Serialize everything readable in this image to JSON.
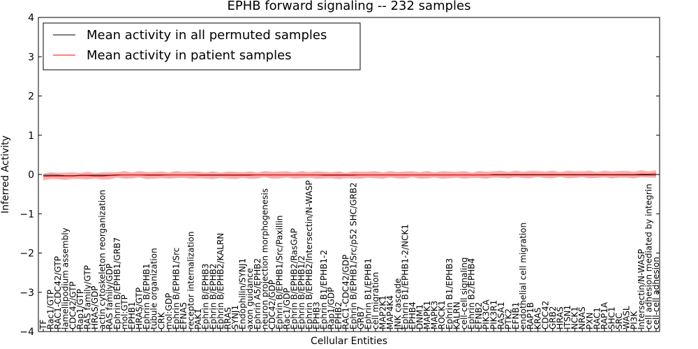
{
  "chart_data": {
    "type": "line",
    "title": "EPHB forward signaling -- 232 samples",
    "xlabel": "Cellular Entities",
    "ylabel": "Inferred Activity",
    "ylim": [
      -4,
      4
    ],
    "yticks": [
      "4",
      "3",
      "2",
      "1",
      "0",
      "−1",
      "−2",
      "−3",
      "−4"
    ],
    "yticks_values": [
      4,
      3,
      2,
      1,
      0,
      -1,
      -2,
      -3,
      -4
    ],
    "legend_position": "top-left",
    "categories": [
      "TF",
      "Rac1/GTP",
      "RAC1-CDC42/GTP",
      "lamellipodium assembly",
      "CDC42/GTP",
      "Rap1/GTP",
      "RAS family/GTP",
      "HRAS/GDP",
      "actin cytoskeleton reorganization",
      "RAS family/GDP",
      "Ephrin B/EPHB1/GRB7",
      "mol:GTP",
      "EPHB1",
      "HRAS/GTP",
      "Ephrin B/EPHB1",
      "tubule organization",
      "CRK",
      "mol:GDP",
      "Ephrin B/EPHB1/Src",
      "EFNA5",
      "receptor internalization",
      "PAK1",
      "Ephrin B/EPHB3",
      "Ephrin B/EPHB2",
      "Ephrin B/EPHB2/KALRN",
      "RRAS",
      "SYNJ1",
      "Endophilin/SYNJ1",
      "axon guidance",
      "Ephrin A5/EPHB2",
      "neuron projection morphogenesis",
      "CDC42/GDP",
      "Ephrin B/EPHB1/Src/Paxillin",
      "Rac1/GDP",
      "Ephrin B/EPHB2/RasGAP",
      "Ephrin B/EPHB1/2",
      "Ephrin B/EPHB2/Intersectin/N-WASP",
      "EPHB3",
      "Ephrin B1/EPHB1-2",
      "Rap1/GDP",
      "EPHB2",
      "RAC1-CDC42/GDP",
      "Ephrin B/EPHB1/Src/p52 SHC/GRB2",
      "GRB7",
      "Ephrin B1/EPHB1",
      "cell migration",
      "MAP2K1",
      "MAP4K4",
      "JNK cascade",
      "Ephrin B1/EPHB1-2/NCK1",
      "EPHB4",
      "DNM1",
      "MAPK1",
      "MAPK3",
      "ROCK1",
      "Ephrin B1/EPHB3",
      "KALRN",
      "cell-cell signaling",
      "Ephrin B2/EPHB4",
      "EFNB2",
      "PIK3CA",
      "PIK3R1",
      "RASA1",
      "PTK2",
      "EFNB1",
      "endothelial cell migration",
      "RAP1B",
      "KRAS",
      "CDC42",
      "GRB2",
      "HRAS",
      "ITSN1",
      "NCK1",
      "NRAS",
      "PXN",
      "RAC1",
      "RAP1A",
      "SHC1",
      "SRC",
      "WASL",
      "PI3K",
      "Intersectin/N-WASP",
      "cell adhesion mediated by integrin",
      "cell-cell adhesion"
    ],
    "series": [
      {
        "name": "Mean activity in all permuted samples",
        "color": "#000000",
        "values": [
          -0.02,
          -0.02,
          -0.02,
          -0.03,
          -0.03,
          -0.02,
          -0.02,
          -0.02,
          -0.02,
          -0.02,
          -0.01,
          -0.01,
          -0.01,
          -0.01,
          -0.01,
          -0.01,
          -0.01,
          -0.01,
          -0.01,
          -0.01,
          -0.01,
          -0.01,
          -0.01,
          -0.01,
          -0.01,
          -0.01,
          -0.01,
          -0.01,
          -0.01,
          -0.01,
          -0.01,
          -0.01,
          -0.01,
          -0.01,
          -0.01,
          -0.01,
          -0.01,
          -0.01,
          -0.01,
          -0.01,
          -0.01,
          -0.01,
          -0.01,
          -0.01,
          -0.01,
          -0.01,
          -0.01,
          -0.01,
          -0.01,
          -0.01,
          -0.01,
          -0.01,
          -0.01,
          -0.01,
          -0.01,
          -0.01,
          -0.01,
          -0.01,
          -0.01,
          -0.01,
          -0.01,
          -0.01,
          -0.01,
          -0.01,
          -0.01,
          -0.01,
          -0.01,
          -0.01,
          -0.01,
          -0.01,
          -0.01,
          -0.01,
          -0.01,
          -0.01,
          -0.01,
          -0.01,
          -0.01,
          -0.01,
          -0.01,
          -0.01,
          -0.01,
          -0.01,
          -0.01,
          -0.01
        ],
        "spread": 0.08,
        "band_color": "#c8c8c8"
      },
      {
        "name": "Mean activity in patient samples",
        "color": "#ff0000",
        "values": [
          -0.05,
          -0.04,
          -0.04,
          -0.04,
          -0.04,
          -0.03,
          -0.03,
          -0.04,
          -0.04,
          -0.03,
          -0.02,
          -0.01,
          -0.01,
          -0.01,
          -0.02,
          -0.02,
          -0.02,
          -0.01,
          -0.01,
          -0.01,
          -0.01,
          -0.02,
          -0.02,
          -0.02,
          -0.02,
          -0.02,
          -0.02,
          -0.02,
          -0.02,
          -0.01,
          -0.01,
          -0.01,
          -0.01,
          -0.01,
          -0.01,
          -0.01,
          -0.01,
          -0.01,
          -0.02,
          -0.02,
          -0.02,
          -0.02,
          -0.02,
          -0.01,
          -0.01,
          -0.01,
          -0.01,
          -0.01,
          -0.01,
          -0.01,
          -0.01,
          -0.01,
          -0.01,
          -0.01,
          -0.01,
          -0.01,
          -0.01,
          -0.01,
          -0.01,
          -0.01,
          -0.01,
          0.0,
          0.0,
          0.0,
          0.0,
          0.0,
          0.0,
          0.0,
          0.0,
          0.0,
          0.0,
          0.0,
          0.0,
          0.0,
          0.0,
          0.0,
          0.0,
          0.0,
          0.0,
          0.0,
          0.0,
          0.01,
          0.01,
          0.02
        ],
        "spread": 0.1,
        "band_color": "#ff9a9a"
      }
    ]
  }
}
